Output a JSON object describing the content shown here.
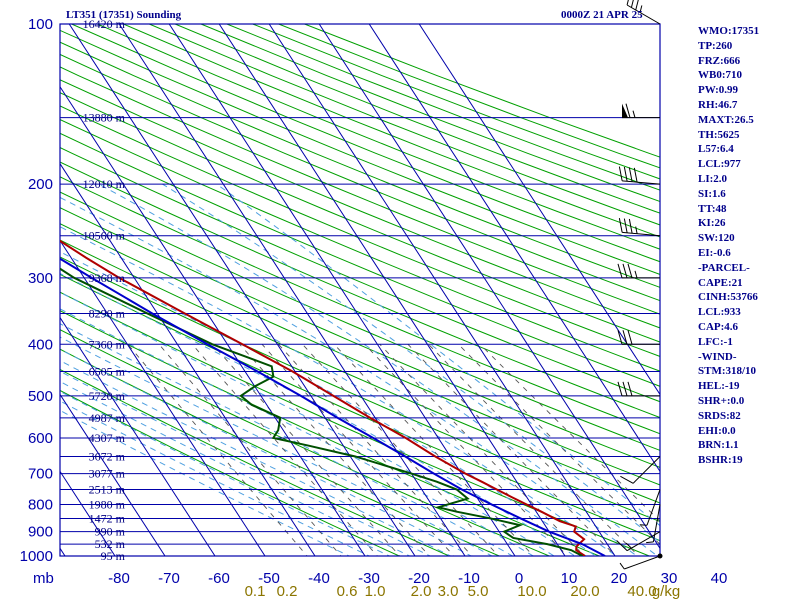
{
  "header": {
    "station_title": "LT351 (17351) Sounding",
    "time_label": "0000Z 21 APR 25"
  },
  "indices": [
    "WMO:17351",
    "TP:260",
    "FRZ:666",
    "WB0:710",
    "PW:0.99",
    "RH:46.7",
    "MAXT:26.5",
    "TH:5625",
    "L57:6.4",
    "LCL:977",
    "LI:2.0",
    "SI:1.6",
    "TT:48",
    "KI:26",
    "SW:120",
    "EI:-0.6",
    "-PARCEL-",
    "CAPE:21",
    "CINH:53766",
    "LCL:933",
    "CAP:4.6",
    "LFC:-1",
    "-WIND-",
    "STM:318/10",
    "HEL:-19",
    "SHR+:0.0",
    "SRDS:82",
    "EHI:0.0",
    "BRN:1.1",
    "BSHR:19"
  ],
  "colors": {
    "isobar": "#0000aa",
    "isotherm": "#0000aa",
    "dry_adiabat": "#00a000",
    "moist_adiabat": "#4fa0e0",
    "mixing_ratio": "#555555",
    "temperature": "#b00000",
    "dewpoint": "#005000",
    "parcel": "#0000cc",
    "wind_barb": "#000000",
    "text": "#00008b"
  },
  "chart_data": {
    "type": "line",
    "diagram": "skew-T log-P",
    "x_unit_label": "mb",
    "pressure_levels": [
      100,
      200,
      300,
      400,
      500,
      600,
      700,
      800,
      900,
      1000
    ],
    "pressure_tick_labels": [
      "100",
      "200",
      "300",
      "400",
      "500",
      "600",
      "700",
      "800",
      "900",
      "1000"
    ],
    "temperature_ticks": [
      -80,
      -70,
      -60,
      -50,
      -40,
      -30,
      -20,
      -10,
      0,
      10,
      20,
      30,
      40
    ],
    "temperature_tick_labels": [
      "-80",
      "-70",
      "-60",
      "-50",
      "-40",
      "-30",
      "-20",
      "-10",
      "0",
      "10",
      "20",
      "30",
      "40"
    ],
    "mixing_ratio_labels": [
      "0.1",
      "0.2",
      "0.6",
      "1.0",
      "2.0",
      "3.0",
      "5.0",
      "10.0",
      "20.0",
      "40.0",
      "g/kg"
    ],
    "height_labels": [
      {
        "p": 100,
        "label": "16420 m"
      },
      {
        "p": 150,
        "label": "13880 m"
      },
      {
        "p": 200,
        "label": "12010 m"
      },
      {
        "p": 250,
        "label": "10560 m"
      },
      {
        "p": 300,
        "label": "9368 m"
      },
      {
        "p": 350,
        "label": "8290 m"
      },
      {
        "p": 400,
        "label": "7360 m"
      },
      {
        "p": 450,
        "label": "6505 m"
      },
      {
        "p": 500,
        "label": "5720 m"
      },
      {
        "p": 550,
        "label": "4987 m"
      },
      {
        "p": 600,
        "label": "4307 m"
      },
      {
        "p": 650,
        "label": "3672 m"
      },
      {
        "p": 700,
        "label": "3077 m"
      },
      {
        "p": 750,
        "label": "2513 m"
      },
      {
        "p": 800,
        "label": "1980 m"
      },
      {
        "p": 850,
        "label": "1472 m"
      },
      {
        "p": 900,
        "label": "990 m"
      },
      {
        "p": 950,
        "label": "532 m"
      },
      {
        "p": 1000,
        "label": "95 m"
      }
    ],
    "series": [
      {
        "key": "temperature",
        "points": [
          [
            1000,
            14
          ],
          [
            975,
            13
          ],
          [
            960,
            13.5
          ],
          [
            930,
            16
          ],
          [
            900,
            15
          ],
          [
            880,
            16
          ],
          [
            860,
            13.5
          ],
          [
            825,
            11
          ],
          [
            800,
            9
          ],
          [
            775,
            7
          ],
          [
            750,
            5
          ],
          [
            725,
            3
          ],
          [
            700,
            0.8
          ],
          [
            650,
            -3
          ],
          [
            600,
            -6.5
          ],
          [
            550,
            -11
          ],
          [
            500,
            -15.5
          ],
          [
            450,
            -20.5
          ],
          [
            400,
            -27
          ],
          [
            350,
            -34.5
          ],
          [
            300,
            -43
          ],
          [
            275,
            -47
          ],
          [
            250,
            -51
          ],
          [
            225,
            -51
          ],
          [
            200,
            -49
          ],
          [
            180,
            -50
          ],
          [
            150,
            -54
          ],
          [
            125,
            -60
          ],
          [
            100,
            -66
          ]
        ]
      },
      {
        "key": "dewpoint",
        "points": [
          [
            1000,
            13.5
          ],
          [
            975,
            12
          ],
          [
            950,
            8
          ],
          [
            925,
            2
          ],
          [
            900,
            1
          ],
          [
            875,
            5
          ],
          [
            850,
            0
          ],
          [
            825,
            -6
          ],
          [
            810,
            -9
          ],
          [
            780,
            -2
          ],
          [
            750,
            -3
          ],
          [
            725,
            -6
          ],
          [
            700,
            -10
          ],
          [
            650,
            -19
          ],
          [
            620,
            -27
          ],
          [
            600,
            -33
          ],
          [
            580,
            -31
          ],
          [
            550,
            -29
          ],
          [
            520,
            -33
          ],
          [
            500,
            -34
          ],
          [
            480,
            -30
          ],
          [
            460,
            -25
          ],
          [
            440,
            -24
          ],
          [
            400,
            -33
          ],
          [
            350,
            -42
          ],
          [
            300,
            -52
          ],
          [
            260,
            -58
          ],
          [
            250,
            -59
          ],
          [
            225,
            -61
          ],
          [
            200,
            -64
          ]
        ]
      },
      {
        "key": "parcel",
        "points": [
          [
            1000,
            18
          ],
          [
            950,
            15
          ],
          [
            900,
            10
          ],
          [
            850,
            6
          ],
          [
            800,
            2
          ],
          [
            750,
            -2
          ],
          [
            700,
            -5.5
          ],
          [
            650,
            -9
          ],
          [
            600,
            -13
          ],
          [
            550,
            -17.5
          ],
          [
            500,
            -22
          ],
          [
            450,
            -27.5
          ],
          [
            400,
            -34
          ],
          [
            350,
            -41
          ],
          [
            300,
            -48.5
          ],
          [
            250,
            -57
          ],
          [
            200,
            -67
          ],
          [
            150,
            -80
          ]
        ]
      }
    ],
    "wind_barbs": [
      {
        "p": 100,
        "dir": 300,
        "kt": 35
      },
      {
        "p": 150,
        "dir": 270,
        "kt": 65
      },
      {
        "p": 200,
        "dir": 275,
        "kt": 40
      },
      {
        "p": 250,
        "dir": 275,
        "kt": 35
      },
      {
        "p": 300,
        "dir": 270,
        "kt": 35
      },
      {
        "p": 400,
        "dir": 270,
        "kt": 30
      },
      {
        "p": 500,
        "dir": 270,
        "kt": 30
      },
      {
        "p": 650,
        "dir": 225,
        "kt": 10
      },
      {
        "p": 750,
        "dir": 200,
        "kt": 5
      },
      {
        "p": 800,
        "dir": 190,
        "kt": 5
      },
      {
        "p": 900,
        "dir": 240,
        "kt": 15
      },
      {
        "p": 1000,
        "dir": 250,
        "kt": 5
      }
    ]
  }
}
